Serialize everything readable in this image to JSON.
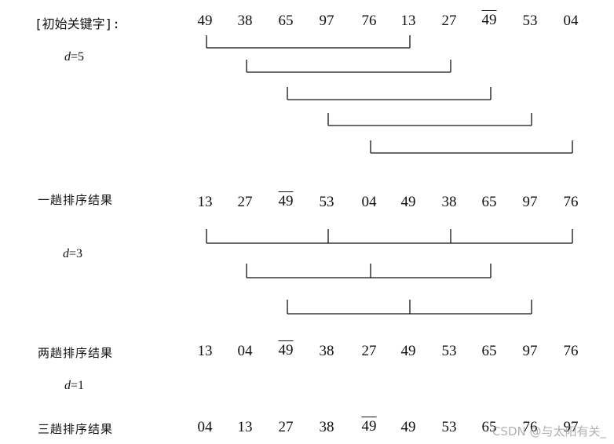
{
  "rows": {
    "initial": {
      "label": "[初始关键字]:",
      "keys": [
        "49",
        "38",
        "65",
        "97",
        "76",
        "13",
        "27",
        "49",
        "53",
        "04"
      ],
      "overlined": [
        7
      ]
    },
    "pass1": {
      "label": "一趟排序结果",
      "keys": [
        "13",
        "27",
        "49",
        "53",
        "04",
        "49",
        "38",
        "65",
        "97",
        "76"
      ],
      "overlined": [
        2
      ]
    },
    "pass2": {
      "label": "两趟排序结果",
      "keys": [
        "13",
        "04",
        "49",
        "38",
        "27",
        "49",
        "53",
        "65",
        "97",
        "76"
      ],
      "overlined": [
        2
      ]
    },
    "pass3": {
      "label": "三趟排序结果",
      "keys": [
        "04",
        "13",
        "27",
        "38",
        "49",
        "49",
        "53",
        "65",
        "76",
        "97"
      ],
      "overlined": [
        4
      ]
    }
  },
  "increments": {
    "d5": {
      "var": "d",
      "eq": "=5"
    },
    "d3": {
      "var": "d",
      "eq": "=3"
    },
    "d1": {
      "var": "d",
      "eq": "=1"
    }
  },
  "groups": {
    "d5": [
      [
        0,
        5
      ],
      [
        1,
        6
      ],
      [
        2,
        7
      ],
      [
        3,
        8
      ],
      [
        4,
        9
      ]
    ],
    "d3": [
      [
        0,
        3,
        6,
        9
      ],
      [
        1,
        4,
        7
      ],
      [
        2,
        5,
        8
      ]
    ]
  },
  "watermark": "CSDN @与太阳有关_"
}
